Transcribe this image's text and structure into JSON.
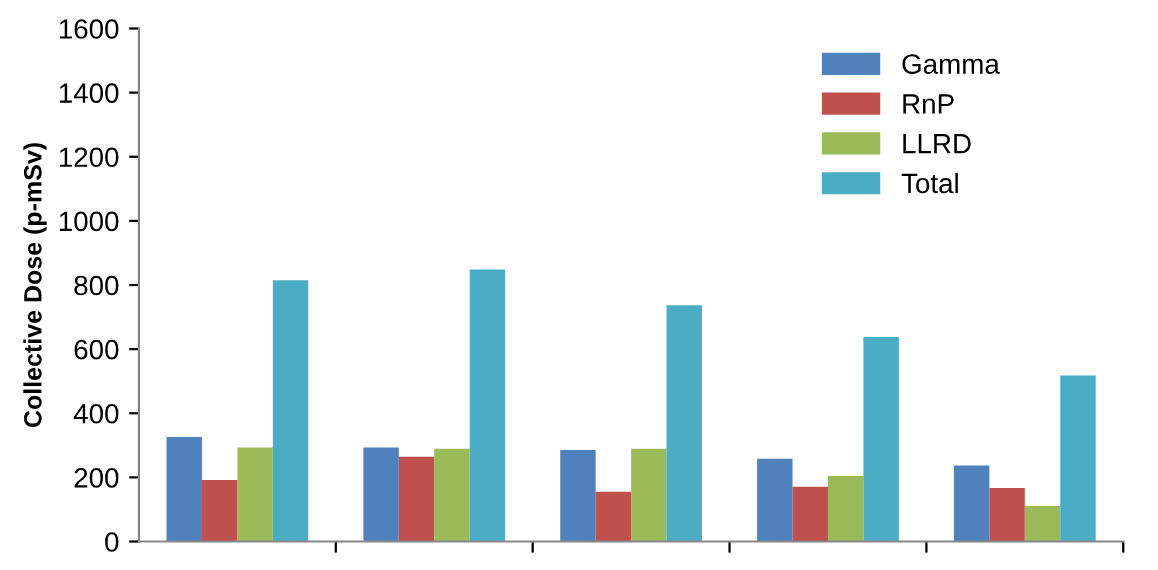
{
  "chart_data": {
    "type": "bar",
    "ylabel": "Collective Dose (p-mSv)",
    "categories": [
      null,
      null,
      null,
      null,
      null
    ],
    "series": [
      {
        "name": "Gamma",
        "color": "#4f81bd",
        "values": [
          326,
          293,
          285,
          258,
          237
        ]
      },
      {
        "name": "RnP",
        "color": "#c0504d",
        "values": [
          192,
          264,
          155,
          171,
          167
        ]
      },
      {
        "name": "LLRD",
        "color": "#9bbb59",
        "values": [
          293,
          289,
          289,
          204,
          111
        ]
      },
      {
        "name": "Total",
        "color": "#4bacc6",
        "values": [
          815,
          848,
          737,
          638,
          518
        ]
      }
    ],
    "ylim": [
      0,
      1600
    ],
    "yticks": [
      0,
      200,
      400,
      600,
      800,
      1000,
      1200,
      1400,
      1600
    ],
    "grid": false,
    "legend": "top right"
  }
}
